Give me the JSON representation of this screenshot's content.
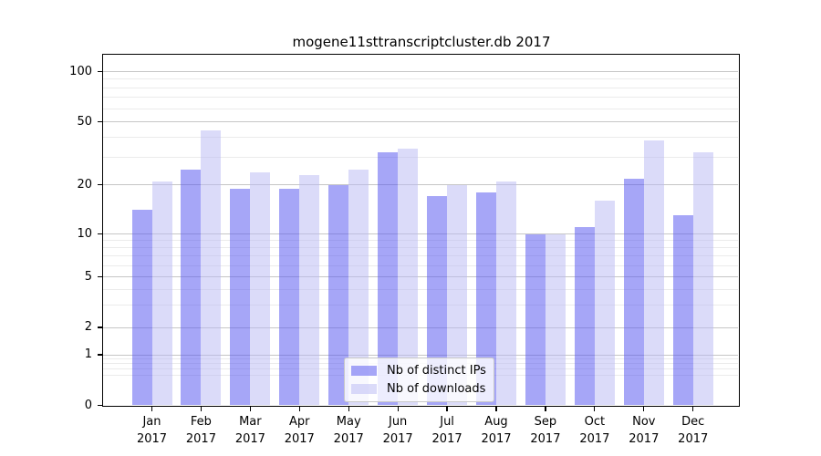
{
  "page": {
    "background": "#ffffff"
  },
  "chart_data": {
    "type": "bar",
    "title": "mogene11sttranscriptcluster.db 2017",
    "categories": [
      "Jan 2017",
      "Feb 2017",
      "Mar 2017",
      "Apr 2017",
      "May 2017",
      "Jun 2017",
      "Jul 2017",
      "Aug 2017",
      "Sep 2017",
      "Oct 2017",
      "Nov 2017",
      "Dec 2017"
    ],
    "series": [
      {
        "name": "Nb of distinct IPs",
        "color": "#5454f0",
        "alpha": 0.52,
        "values": [
          14,
          25,
          19,
          19,
          20,
          32,
          17,
          18,
          10,
          11,
          22,
          13
        ]
      },
      {
        "name": "Nb of downloads",
        "color": "#b8b8f4",
        "alpha": 0.5,
        "values": [
          21,
          44,
          24,
          23,
          25,
          34,
          20,
          21,
          10,
          16,
          38,
          32
        ]
      }
    ],
    "yscale": "log-like with zero baseline",
    "y_ticks": [
      {
        "value": 100,
        "label": "100"
      },
      {
        "value": 50,
        "label": "50"
      },
      {
        "value": 20,
        "label": "20"
      },
      {
        "value": 10,
        "label": "10"
      },
      {
        "value": 5,
        "label": "5"
      },
      {
        "value": 2,
        "label": "2"
      },
      {
        "value": 1,
        "label": "1"
      },
      {
        "value": 0,
        "label": "0"
      }
    ],
    "y_minor_gridlines": [
      0.6,
      0.7,
      0.8,
      0.9,
      3,
      4,
      6,
      7,
      8,
      9,
      30,
      40,
      60,
      70,
      80,
      90
    ],
    "grid": "on",
    "legend_position": "bottom-center",
    "colors": {
      "grid_major": "#c6c6c6",
      "grid_minor": "#ebebeb",
      "axis_frame": "#000000",
      "legend_border": "#c9c9c9",
      "text": "#000000"
    }
  }
}
